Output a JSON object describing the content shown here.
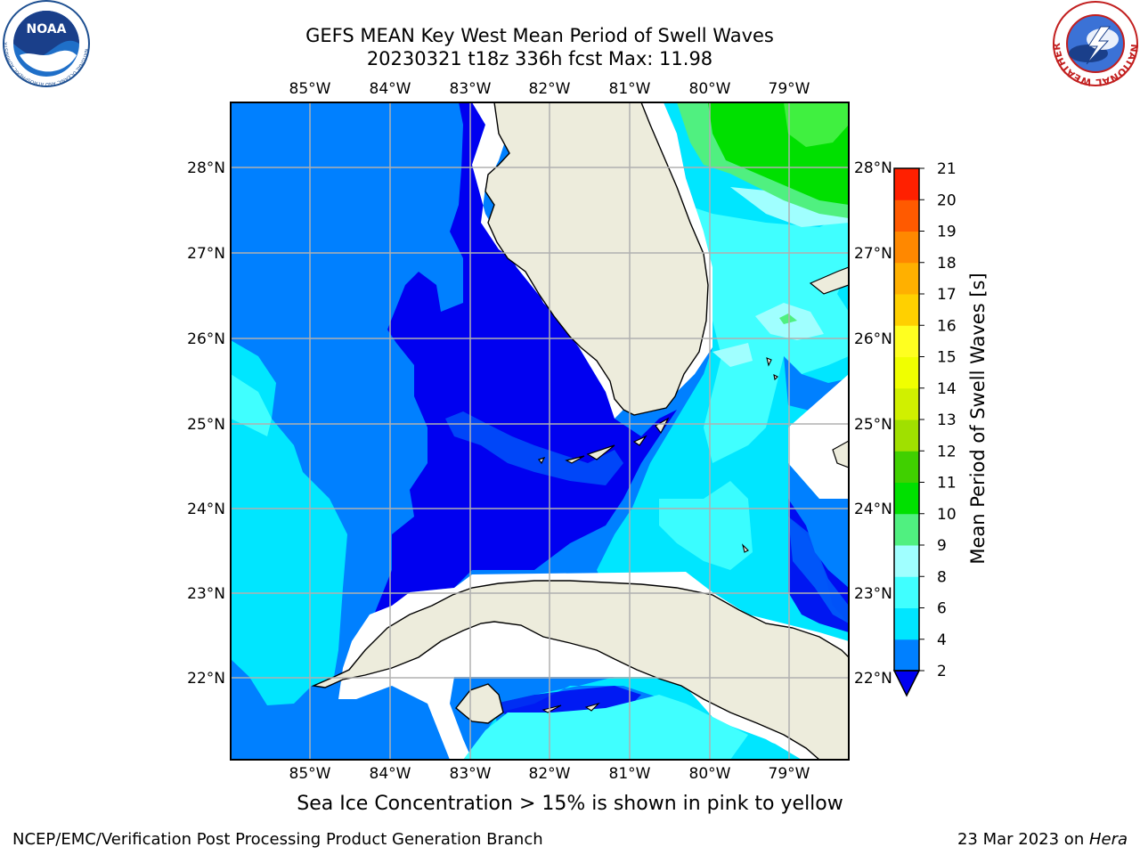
{
  "header": {
    "title_line1": "GEFS MEAN Key West Mean Period of Swell Waves",
    "title_line2": "20230321 t18z 336h fcst   Max: 11.98"
  },
  "logos": {
    "left": "noaa-logo",
    "right": "national-weather-service-logo",
    "left_text": "NOAA",
    "left_ring_text": "NATIONAL OCEANIC AND ATMOSPHERIC ADMINISTRATION · U.S. DEPARTMENT OF COMMERCE",
    "right_ring_text": "NATIONAL WEATHER SERVICE"
  },
  "map": {
    "lon_labels": [
      "85°W",
      "84°W",
      "83°W",
      "82°W",
      "81°W",
      "80°W",
      "79°W"
    ],
    "lat_labels": [
      "28°N",
      "27°N",
      "26°N",
      "25°N",
      "24°N",
      "23°N",
      "22°N"
    ],
    "colors": {
      "land": "#edecdc",
      "c2_4": "#0080ff",
      "c4_6": "#00e6ff",
      "c6_8": "#40ffff",
      "c8_9": "#a0ffff",
      "c9_10": "#50f080",
      "c10_11": "#00e000",
      "below2": "#0000f0",
      "missing": "#ffffff"
    }
  },
  "colorbar": {
    "label": "Mean Period of Swell Waves [s]",
    "ticks": [
      "2",
      "4",
      "6",
      "8",
      "9",
      "10",
      "11",
      "12",
      "13",
      "14",
      "15",
      "16",
      "17",
      "18",
      "19",
      "20",
      "21"
    ],
    "colors": [
      "#0080ff",
      "#00e6ff",
      "#40ffff",
      "#a0ffff",
      "#50f080",
      "#00e000",
      "#40d000",
      "#a0e000",
      "#d0f000",
      "#f0ff00",
      "#ffff20",
      "#ffd000",
      "#ffb000",
      "#ff8800",
      "#ff5a00",
      "#ff2000"
    ],
    "under_color": "#0000f0"
  },
  "note": "Sea Ice Concentration > 15% is shown in pink to yellow",
  "footer": {
    "left": "NCEP/EMC/Verification Post Processing Product Generation Branch",
    "right_prefix": "23 Mar 2023 on ",
    "right_host": "Hera"
  }
}
